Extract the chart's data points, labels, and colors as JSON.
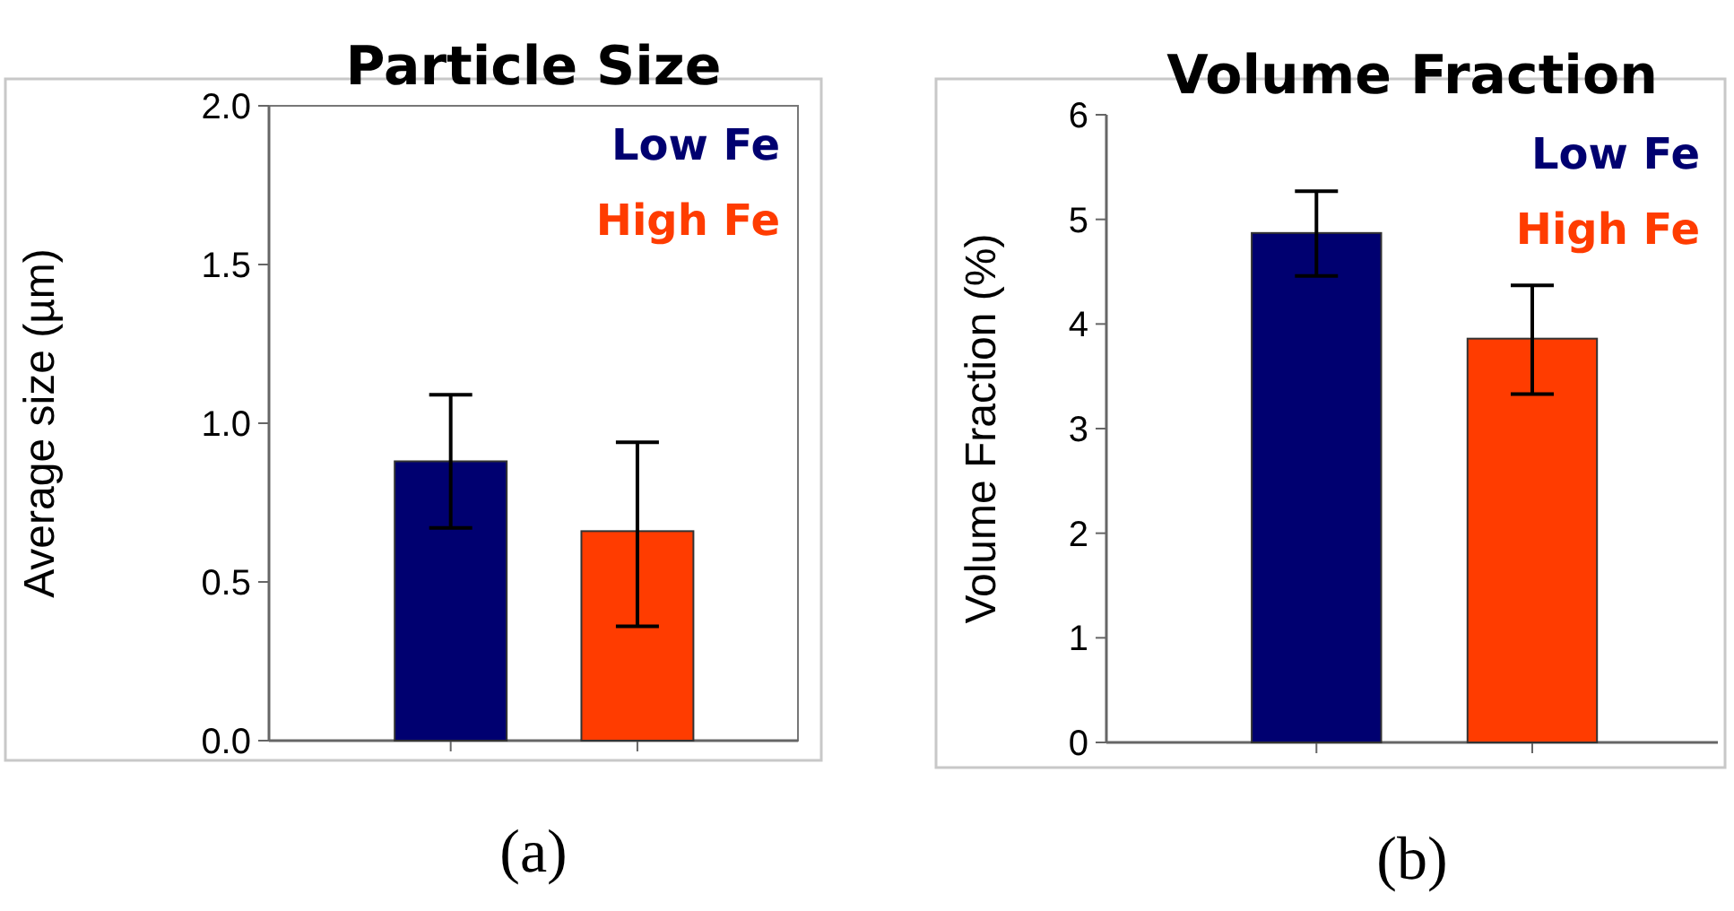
{
  "chart_data": [
    {
      "type": "bar",
      "title": "Particle Size",
      "ylabel": "Average size (µm)",
      "categories": [
        null,
        null
      ],
      "series": [
        {
          "name": "Low Fe",
          "color": "#000070",
          "values": [
            0.88,
            null
          ],
          "errors": [
            [
              0.67,
              1.09
            ],
            null
          ]
        },
        {
          "name": "High Fe",
          "color": "#ff3c00",
          "values": [
            null,
            0.66
          ],
          "errors": [
            null,
            [
              0.36,
              0.94
            ]
          ]
        }
      ],
      "ylim": [
        0,
        2
      ],
      "yticks": [
        {
          "value": 0,
          "label": "0.0"
        },
        {
          "value": 0.5,
          "label": "0.5"
        },
        {
          "value": 1,
          "label": "1.0"
        },
        {
          "value": 1.5,
          "label": "1.5"
        },
        {
          "value": 2,
          "label": "2.0"
        }
      ],
      "legend": "top right",
      "annotations": [
        "(a)"
      ]
    },
    {
      "type": "bar",
      "title": "Volume Fraction",
      "ylabel": "Volume Fraction (%)",
      "categories": [
        null,
        null
      ],
      "series": [
        {
          "name": "Low Fe",
          "color": "#000070",
          "values": [
            4.87,
            null
          ],
          "errors": [
            [
              4.46,
              5.27
            ],
            null
          ]
        },
        {
          "name": "High Fe",
          "color": "#ff3c00",
          "values": [
            null,
            3.86
          ],
          "errors": [
            null,
            [
              3.33,
              4.37
            ]
          ]
        }
      ],
      "ylim": [
        0,
        6
      ],
      "yticks": [
        0,
        1,
        2,
        3,
        4,
        5,
        6
      ],
      "legend": "top right",
      "annotations": [
        "(b)"
      ]
    }
  ]
}
